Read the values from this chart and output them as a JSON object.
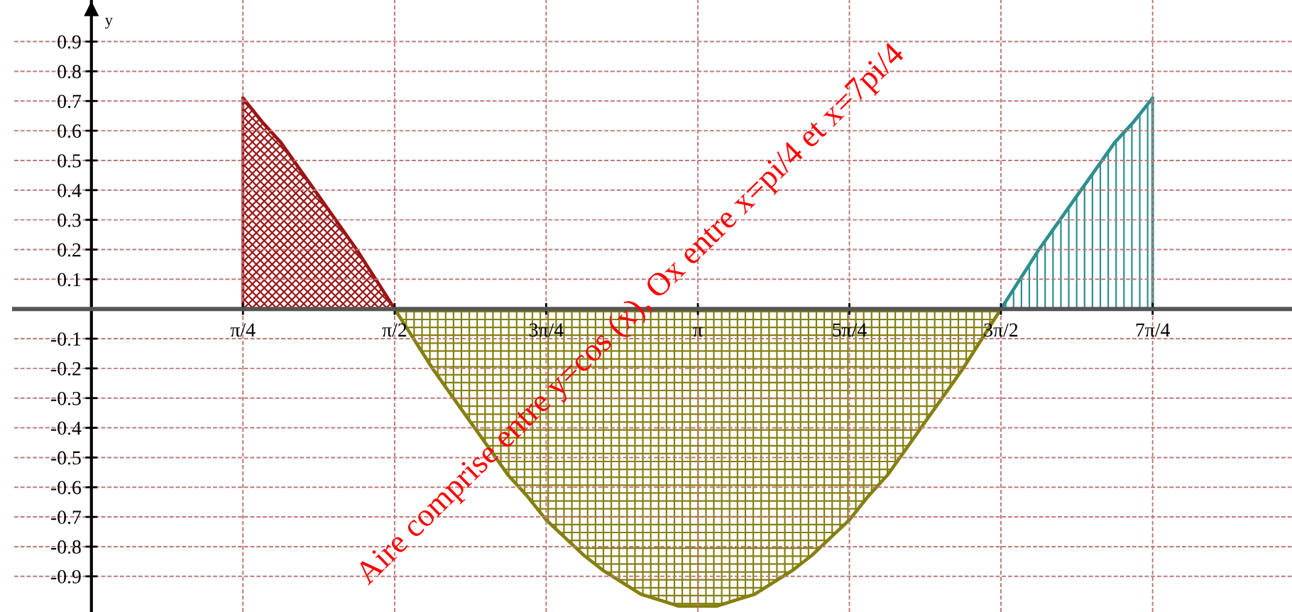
{
  "chart_data": {
    "type": "area",
    "ylabel": "y",
    "annotations": [
      "Aire comprise entre y=cos (x), Ox entre x=pi/4 et x=7pi/4"
    ],
    "series": [
      {
        "color": "#9b1616",
        "x": [
          0.785,
          0.884,
          0.982,
          1.08,
          1.178,
          1.276,
          1.374,
          1.473,
          1.571
        ],
        "values": [
          0.71,
          0.63,
          0.56,
          0.47,
          0.38,
          0.29,
          0.2,
          0.1,
          0.0
        ]
      },
      {
        "color": "#858010",
        "x": [
          1.571,
          1.669,
          1.767,
          1.865,
          1.963,
          2.062,
          2.16,
          2.258,
          2.356,
          2.454,
          2.553,
          2.651,
          2.749,
          2.847,
          2.945,
          3.043,
          3.142,
          3.24,
          3.338,
          3.436,
          3.534,
          3.632,
          3.731,
          3.829,
          3.927,
          4.025,
          4.123,
          4.222,
          4.32,
          4.418,
          4.516,
          4.614,
          4.712
        ],
        "values": [
          0.0,
          -0.1,
          -0.2,
          -0.29,
          -0.38,
          -0.47,
          -0.56,
          -0.63,
          -0.71,
          -0.77,
          -0.83,
          -0.88,
          -0.92,
          -0.96,
          -0.98,
          -1.0,
          -1.0,
          -1.0,
          -0.98,
          -0.96,
          -0.92,
          -0.88,
          -0.83,
          -0.77,
          -0.71,
          -0.63,
          -0.56,
          -0.47,
          -0.38,
          -0.29,
          -0.2,
          -0.1,
          0.0
        ]
      },
      {
        "color": "#2e8f8f",
        "x": [
          4.712,
          4.811,
          4.909,
          5.007,
          5.105,
          5.203,
          5.301,
          5.4,
          5.498
        ],
        "values": [
          0.0,
          0.1,
          0.2,
          0.29,
          0.38,
          0.47,
          0.56,
          0.63,
          0.71
        ]
      }
    ],
    "xlim": [
      -0.4,
      6.22
    ],
    "ylim": [
      -1.02,
      1.04
    ],
    "xticks": [
      {
        "value": 0.785,
        "label": "π/4"
      },
      {
        "value": 1.571,
        "label": "π/2"
      },
      {
        "value": 2.356,
        "label": "3π/4"
      },
      {
        "value": 3.142,
        "label": "π"
      },
      {
        "value": 3.927,
        "label": "5π/4"
      },
      {
        "value": 4.712,
        "label": "3π/2"
      },
      {
        "value": 5.498,
        "label": "7π/4"
      }
    ],
    "yticks": [
      -0.9,
      -0.8,
      -0.7,
      -0.6,
      -0.5,
      -0.4,
      -0.3,
      -0.2,
      -0.1,
      0.1,
      0.2,
      0.3,
      0.4,
      0.5,
      0.6,
      0.7,
      0.8,
      0.9
    ],
    "grid": true
  }
}
